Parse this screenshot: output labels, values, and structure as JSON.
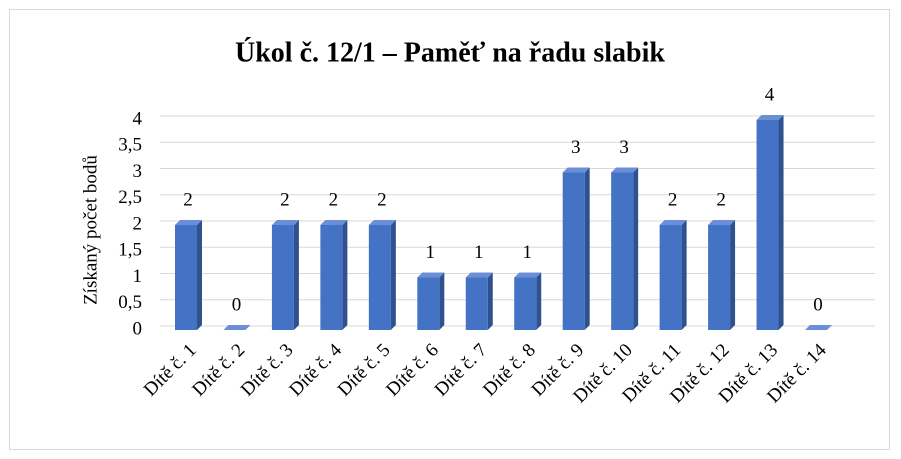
{
  "chart_data": {
    "type": "bar",
    "title": "Úkol č. 12/1 – Paměť na řadu slabik",
    "y_label": "Získaný počet bodů",
    "categories": [
      "Dítě č. 1",
      "Dítě č. 2",
      "Dítě č. 3",
      "Dítě č. 4",
      "Dítě č. 5",
      "Dítě č. 6",
      "Dítě č. 7",
      "Dítě č. 8",
      "Dítě č. 9",
      "Dítě č. 10",
      "Dítě č. 11",
      "Dítě č. 12",
      "Dítě č. 13",
      "Dítě č. 14"
    ],
    "values": [
      2,
      0,
      2,
      2,
      2,
      1,
      1,
      1,
      3,
      3,
      2,
      2,
      4,
      0
    ],
    "color": "#4472c4",
    "ylim": [
      0,
      4
    ],
    "yticks": [
      0,
      {
        "value": 0.5,
        "label": "0,5"
      },
      1,
      {
        "value": 1.5,
        "label": "1,5"
      },
      2,
      {
        "value": 2.5,
        "label": "2,5"
      },
      3,
      {
        "value": 3.5,
        "label": "3,5"
      },
      4
    ],
    "grid": true
  }
}
